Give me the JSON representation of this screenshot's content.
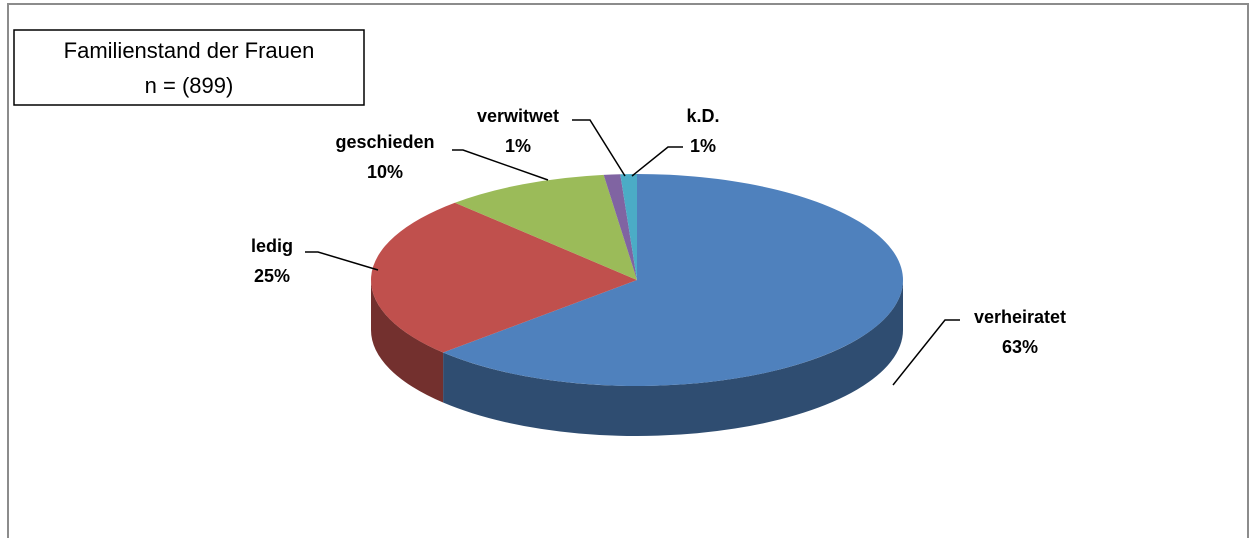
{
  "chart_data": {
    "type": "pie",
    "title": "Familienstand der Frauen",
    "subtitle": "n = (899)",
    "categories": [
      "verheiratet",
      "ledig",
      "geschieden",
      "verwitwet",
      "k.D."
    ],
    "values": [
      63,
      25,
      10,
      1,
      1
    ],
    "value_labels": [
      "63%",
      "25%",
      "10%",
      "1%",
      "1%"
    ],
    "colors": [
      "#4f81bd",
      "#c0504d",
      "#9bbb59",
      "#8064a2",
      "#4bacc6"
    ]
  }
}
